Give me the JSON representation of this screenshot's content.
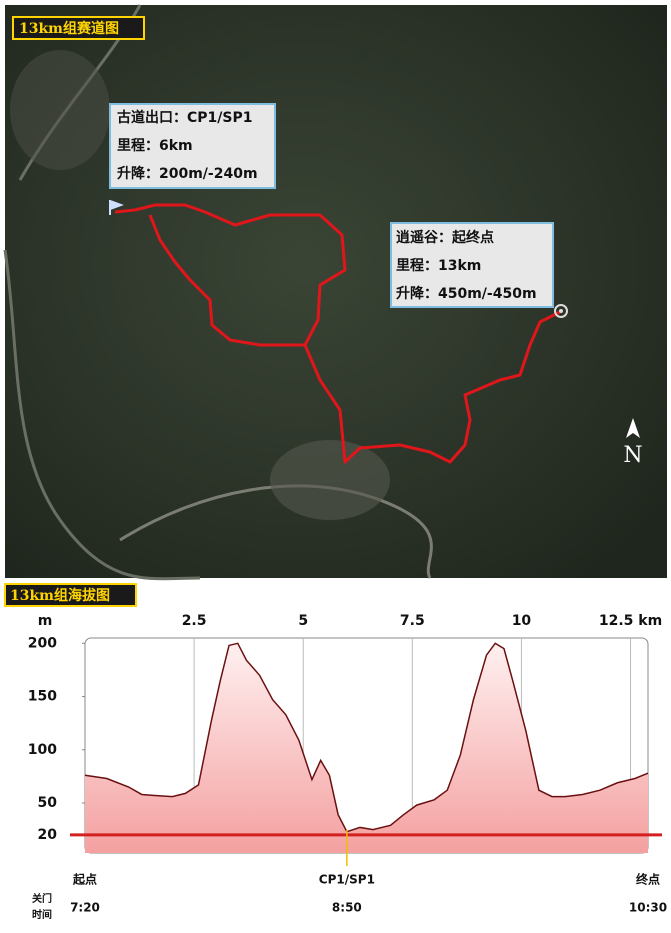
{
  "map": {
    "title": "13km组赛道图",
    "callouts": [
      {
        "lines": [
          "古道出口：CP1/SP1",
          "里程：6km",
          "升降：200m/-240m"
        ]
      },
      {
        "lines": [
          "逍遥谷：起终点",
          "里程：13km",
          "升降：450m/-450m"
        ]
      }
    ],
    "compass": "N"
  },
  "chart_data": {
    "type": "area",
    "title": "13km组海拔图",
    "y_label": "m",
    "color": "#f4a0a0",
    "line_color": "#6b1010",
    "grid": true,
    "x": [
      0,
      0.5,
      1.0,
      1.3,
      1.6,
      2.0,
      2.3,
      2.6,
      2.9,
      3.1,
      3.3,
      3.5,
      3.7,
      4.0,
      4.3,
      4.6,
      4.9,
      5.2,
      5.4,
      5.6,
      5.8,
      6.0,
      6.3,
      6.6,
      7.0,
      7.3,
      7.6,
      8.0,
      8.3,
      8.6,
      8.9,
      9.2,
      9.4,
      9.6,
      9.8,
      10.1,
      10.4,
      10.7,
      11.0,
      11.4,
      11.8,
      12.2,
      12.6,
      12.9
    ],
    "values": [
      76,
      73,
      65,
      58,
      57,
      56,
      59,
      67,
      128,
      165,
      198,
      200,
      184,
      170,
      147,
      133,
      109,
      72,
      90,
      76,
      39,
      23,
      27,
      25,
      29,
      39,
      48,
      53,
      62,
      95,
      147,
      189,
      200,
      195,
      165,
      118,
      62,
      56,
      56,
      58,
      62,
      69,
      73,
      78
    ],
    "xlim": [
      0,
      12.9
    ],
    "ylim": [
      3,
      205
    ],
    "xticks": [
      2.5,
      5,
      7.5,
      10,
      {
        "value": 12.5,
        "label": "12.5 km"
      }
    ],
    "yticks": [
      20,
      50,
      100,
      150,
      200
    ],
    "ref_line": 20,
    "ref_color": "#d42020",
    "time_label": [
      "关门",
      "时间"
    ],
    "checkpoints": [
      {
        "x": 0,
        "label": "起点",
        "time": "7:20"
      },
      {
        "x": 6,
        "label": "CP1/SP1",
        "time": "8:50"
      },
      {
        "x": 12.9,
        "label": "终点",
        "time": "10:30"
      }
    ]
  }
}
